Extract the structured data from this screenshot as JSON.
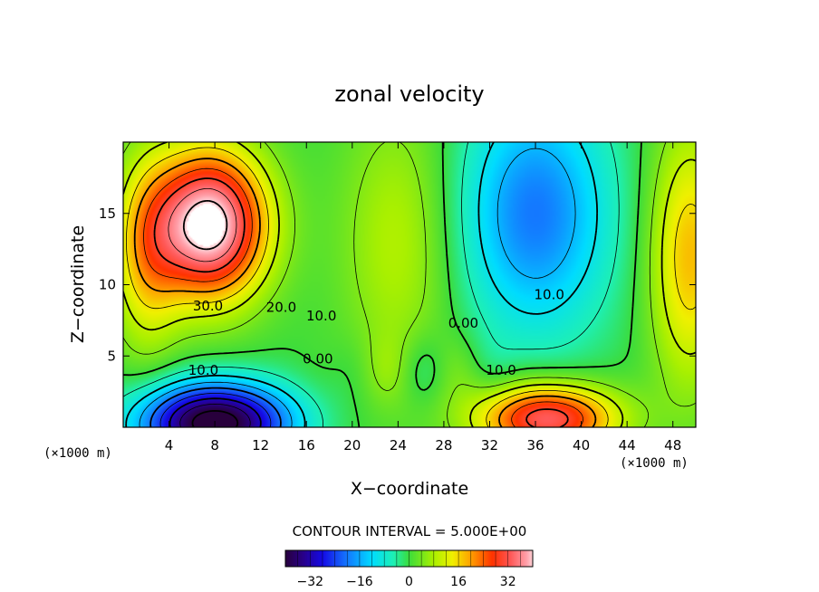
{
  "chart_data": {
    "type": "contour",
    "title": "zonal velocity",
    "xlabel": "X−coordinate",
    "ylabel": "Z−coordinate",
    "x_unit_left": "(×1000 m)",
    "x_unit_right": "(×1000 m)",
    "x_ticks": [
      4,
      8,
      12,
      16,
      20,
      24,
      28,
      32,
      36,
      40,
      44,
      48
    ],
    "y_ticks": [
      5,
      10,
      15
    ],
    "xlim": [
      0,
      50
    ],
    "ylim": [
      0,
      20
    ],
    "contour_interval_text": "CONTOUR INTERVAL = 5.000E+00",
    "contour_labels": [
      {
        "text": "30.0",
        "x": 7.4,
        "y": 8.5
      },
      {
        "text": "20.0",
        "x": 13.8,
        "y": 8.4
      },
      {
        "text": "10.0",
        "x": 17.3,
        "y": 7.8
      },
      {
        "text": "0.00",
        "x": 29.7,
        "y": 7.3
      },
      {
        "text": "10.0",
        "x": 37.2,
        "y": 9.3
      },
      {
        "text": "0.00",
        "x": 17.0,
        "y": 4.8
      },
      {
        "text": "10.0",
        "x": 7.0,
        "y": 4.0
      },
      {
        "text": "10.0",
        "x": 33.0,
        "y": 4.0
      }
    ],
    "features": [
      {
        "kind": "max",
        "x": 7.5,
        "y": 14.0,
        "value": 42
      },
      {
        "kind": "min",
        "x": 7.5,
        "y": 1.0,
        "value": -38
      },
      {
        "kind": "min",
        "x": 36,
        "y": 16.5,
        "value": -12
      },
      {
        "kind": "max",
        "x": 36,
        "y": 1.2,
        "value": 24
      }
    ],
    "colorbar": {
      "ticks": [
        "−32",
        "−16",
        "0",
        "16",
        "32"
      ],
      "tick_values": [
        -32,
        -16,
        0,
        16,
        32
      ],
      "range": [
        -40,
        40
      ]
    }
  }
}
